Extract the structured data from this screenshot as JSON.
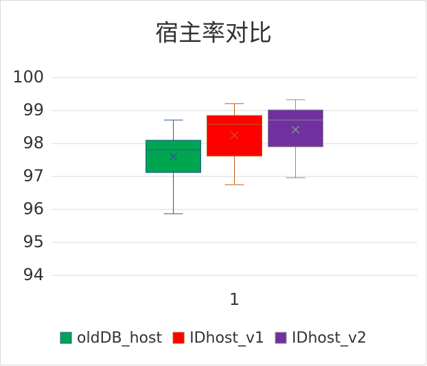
{
  "chart_data": {
    "type": "box",
    "title": "宿主率对比",
    "categories": [
      "1"
    ],
    "ylim": [
      94,
      100
    ],
    "yticks": [
      94,
      95,
      96,
      97,
      98,
      99,
      100
    ],
    "grid": true,
    "series": [
      {
        "name": "oldDB_host",
        "color": "#00a550",
        "edge": "#2e5597",
        "min": 95.87,
        "q1": 97.12,
        "median": 97.81,
        "q3": 98.1,
        "max": 98.71,
        "mean": 97.6
      },
      {
        "name": "IDhost_v1",
        "color": "#ff0000",
        "edge": "#c55a11",
        "min": 96.75,
        "q1": 97.62,
        "median": 98.58,
        "q3": 98.85,
        "max": 99.21,
        "mean": 98.25
      },
      {
        "name": "IDhost_v2",
        "color": "#7030a0",
        "edge": "#8c8c8c",
        "min": 96.96,
        "q1": 97.9,
        "median": 98.71,
        "q3": 99.02,
        "max": 99.33,
        "mean": 98.42
      }
    ]
  }
}
